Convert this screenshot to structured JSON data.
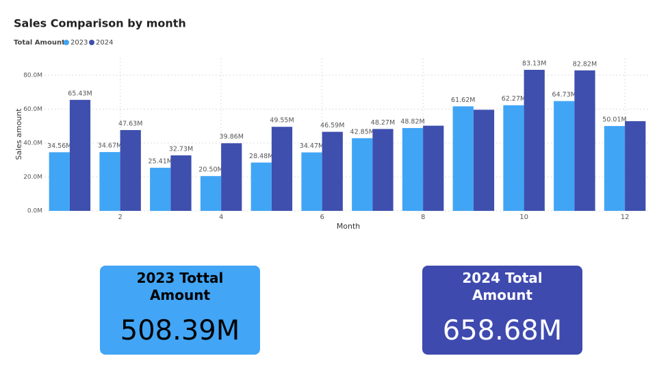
{
  "chart_data": {
    "type": "bar",
    "title": "Sales Comparison by month",
    "legend_title": "Total Amount",
    "x_label": "Month",
    "y_label": "Sales amount",
    "categories": [
      null,
      "2",
      null,
      "4",
      null,
      "6",
      null,
      "8",
      null,
      "10",
      null,
      "12"
    ],
    "series": [
      {
        "name": "2023",
        "color": "#41a5f5",
        "values": [
          34.56,
          34.67,
          25.41,
          20.5,
          28.48,
          34.47,
          42.85,
          48.82,
          61.62,
          62.27,
          64.73,
          50.01
        ],
        "value_labels": [
          "34.56M",
          "34.67M",
          "25.41M",
          "20.50M",
          "28.48M",
          "34.47M",
          "42.85M",
          "48.82M",
          "61.62M",
          "62.27M",
          "64.73M",
          "50.01M"
        ]
      },
      {
        "name": "2024",
        "color": "#3f4fae",
        "values": [
          65.43,
          47.63,
          32.73,
          39.86,
          49.55,
          46.59,
          48.27,
          50.2,
          59.6,
          83.13,
          82.82,
          52.87
        ],
        "value_labels": [
          "65.43M",
          "47.63M",
          "32.73M",
          "39.86M",
          "49.55M",
          "46.59M",
          "48.27M",
          null,
          null,
          "83.13M",
          "82.82M",
          null
        ]
      }
    ],
    "ylim": [
      0,
      90
    ],
    "yticks": [
      {
        "value": 0,
        "label": "0.0M"
      },
      {
        "value": 20,
        "label": "20.0M"
      },
      {
        "value": 40,
        "label": "40.0M"
      },
      {
        "value": 60,
        "label": "60.0M"
      },
      {
        "value": 80,
        "label": "80.0M"
      }
    ],
    "grid": true
  },
  "cards": [
    {
      "title": "2023 Tottal Amount",
      "value": "508.39M",
      "color": "#42a5f5",
      "text_color": "#000000"
    },
    {
      "title": "2024 Total Amount",
      "value": "658.68M",
      "color": "#3f4aaf",
      "text_color": "#ffffff"
    }
  ]
}
